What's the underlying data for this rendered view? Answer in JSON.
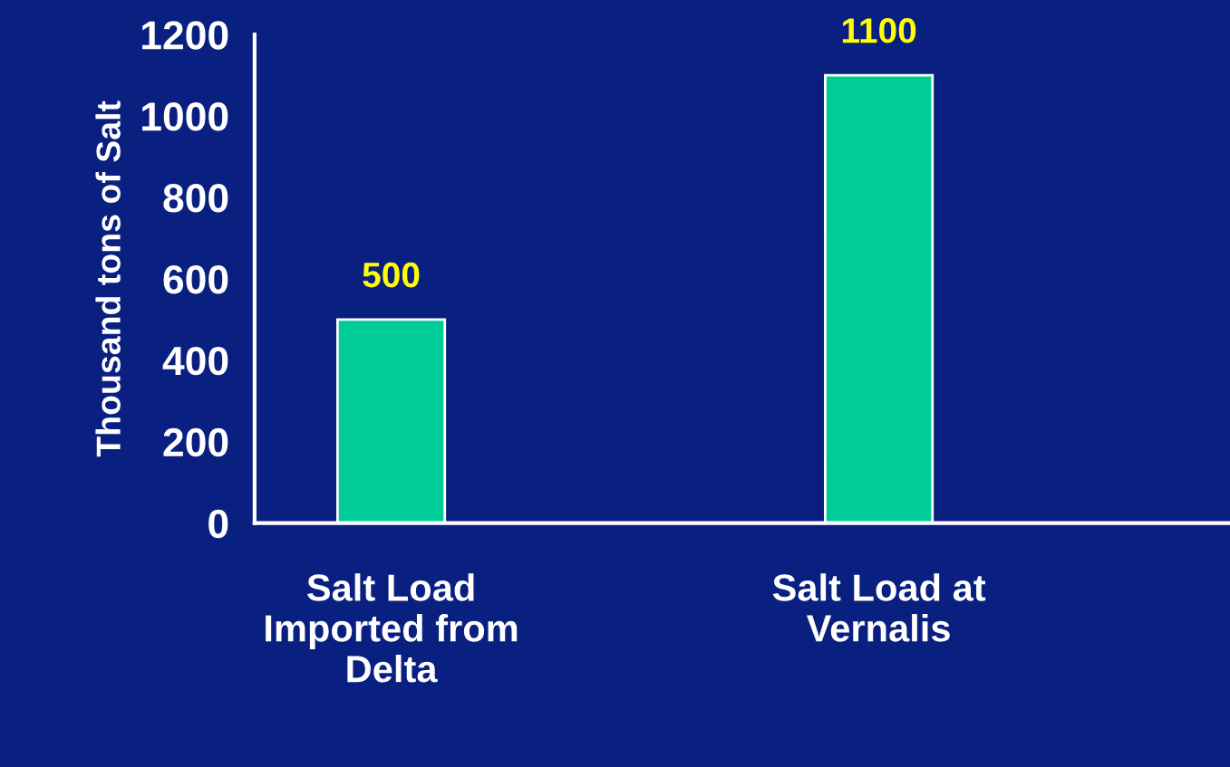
{
  "chart_data": {
    "type": "bar",
    "ylabel": "Thousand tons of Salt",
    "categories": [
      "Salt Load\nImported from\nDelta",
      "Salt Load at\nVernalis"
    ],
    "values": [
      500,
      1100
    ],
    "color": "#00cc99",
    "ylim": [
      0,
      1200
    ],
    "yticks": [
      0,
      200,
      400,
      600,
      800,
      1000,
      1200
    ],
    "data_labels": true,
    "grid": false,
    "legend": false
  }
}
